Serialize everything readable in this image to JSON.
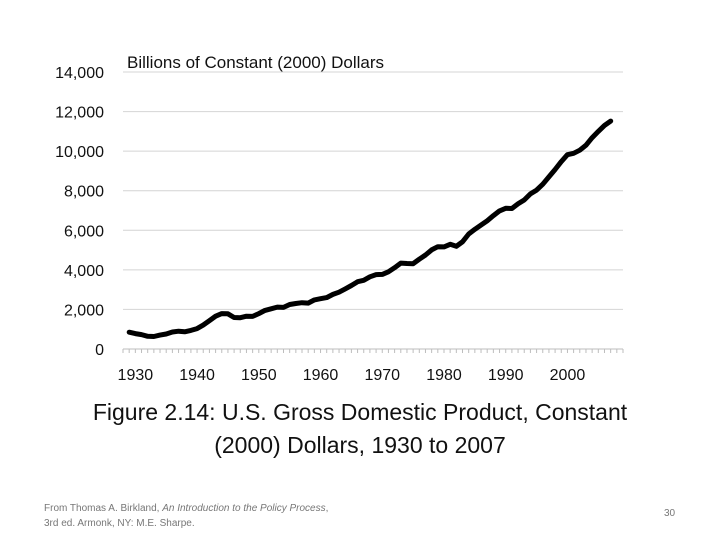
{
  "chart_data": {
    "type": "line",
    "title": "Billions of Constant (2000) Dollars",
    "xlabel": "",
    "ylabel": "",
    "xlim": [
      1928,
      2009
    ],
    "ylim": [
      0,
      14000
    ],
    "x_ticks": [
      "1930",
      "1940",
      "1950",
      "1960",
      "1970",
      "1980",
      "1990",
      "2000"
    ],
    "y_ticks": [
      "0",
      "2,000",
      "4,000",
      "6,000",
      "8,000",
      "10,000",
      "12,000",
      "14,000"
    ],
    "grid": true,
    "series": [
      {
        "color": "#000000",
        "x": [
          1929,
          1930,
          1931,
          1932,
          1933,
          1934,
          1935,
          1936,
          1937,
          1938,
          1939,
          1940,
          1941,
          1942,
          1943,
          1944,
          1945,
          1946,
          1947,
          1948,
          1949,
          1950,
          1951,
          1952,
          1953,
          1954,
          1955,
          1956,
          1957,
          1958,
          1959,
          1960,
          1961,
          1962,
          1963,
          1964,
          1965,
          1966,
          1967,
          1968,
          1969,
          1970,
          1971,
          1972,
          1973,
          1974,
          1975,
          1976,
          1977,
          1978,
          1979,
          1980,
          1981,
          1982,
          1983,
          1984,
          1985,
          1986,
          1987,
          1988,
          1989,
          1990,
          1991,
          1992,
          1993,
          1994,
          1995,
          1996,
          1997,
          1998,
          1999,
          2000,
          2001,
          2002,
          2003,
          2004,
          2005,
          2006,
          2007
        ],
        "values": [
          850,
          780,
          730,
          640,
          630,
          700,
          760,
          860,
          900,
          870,
          940,
          1030,
          1210,
          1430,
          1660,
          1790,
          1780,
          1590,
          1580,
          1660,
          1650,
          1790,
          1950,
          2030,
          2120,
          2100,
          2250,
          2300,
          2340,
          2320,
          2480,
          2540,
          2600,
          2760,
          2870,
          3040,
          3210,
          3400,
          3470,
          3650,
          3760,
          3770,
          3900,
          4110,
          4340,
          4320,
          4310,
          4540,
          4750,
          5010,
          5170,
          5160,
          5290,
          5190,
          5420,
          5810,
          6050,
          6260,
          6480,
          6740,
          6980,
          7110,
          7100,
          7340,
          7530,
          7840,
          8030,
          8330,
          8700,
          9070,
          9470,
          9820,
          9890,
          10050,
          10300,
          10680,
          11000,
          11300,
          11520
        ]
      }
    ]
  },
  "caption": {
    "line1": "Figure 2.14: U.S. Gross Domestic Product, Constant",
    "line2": "(2000) Dollars, 1930 to 2007"
  },
  "source": {
    "prefix": "From Thomas A. Birkland, ",
    "title": "An Introduction to the Policy Process",
    "suffix": ", 3rd ed. Armonk, NY: M.E. Sharpe."
  },
  "slide_number": "30"
}
